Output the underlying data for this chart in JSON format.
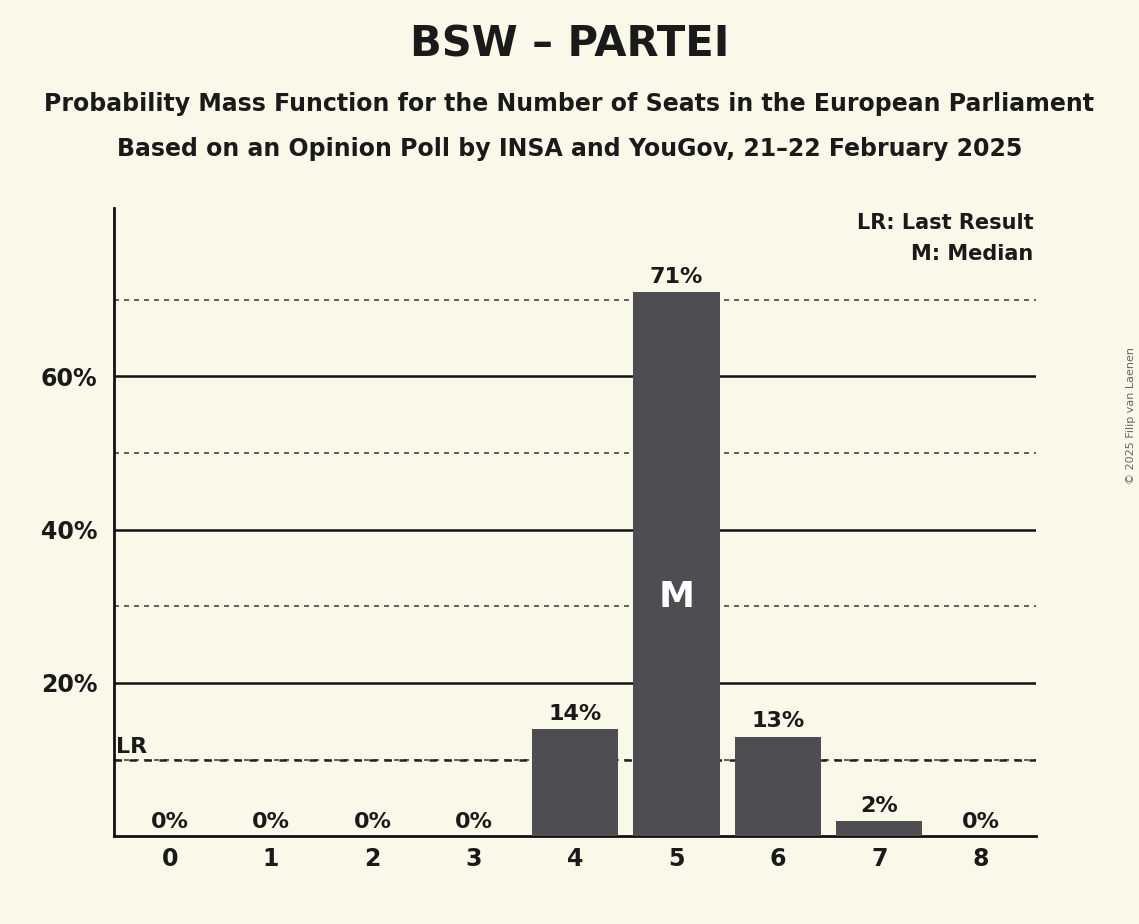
{
  "title": "BSW – PARTEI",
  "subtitle1": "Probability Mass Function for the Number of Seats in the European Parliament",
  "subtitle2": "Based on an Opinion Poll by INSA and YouGov, 21–22 February 2025",
  "copyright": "© 2025 Filip van Laenen",
  "categories": [
    0,
    1,
    2,
    3,
    4,
    5,
    6,
    7,
    8
  ],
  "values": [
    0.0,
    0.0,
    0.0,
    0.0,
    0.14,
    0.71,
    0.13,
    0.02,
    0.0
  ],
  "labels": [
    "0%",
    "0%",
    "0%",
    "0%",
    "14%",
    "71%",
    "13%",
    "2%",
    "0%"
  ],
  "bar_color": "#4d4d52",
  "background_color": "#faf8e8",
  "median_seat": 5,
  "median_label": "M",
  "lr_value": 0.1,
  "lr_label": "LR",
  "lr_line_color": "#222222",
  "ytick_positions": [
    0.2,
    0.4,
    0.6
  ],
  "ytick_labels": [
    "20%",
    "40%",
    "60%"
  ],
  "dotted_lines": [
    0.1,
    0.3,
    0.5,
    0.7
  ],
  "solid_lines": [
    0.2,
    0.4,
    0.6
  ],
  "title_fontsize": 30,
  "subtitle_fontsize": 17,
  "label_fontsize": 16,
  "axis_fontsize": 17,
  "legend_fontsize": 15,
  "median_fontsize": 26,
  "ylim_max": 0.82
}
